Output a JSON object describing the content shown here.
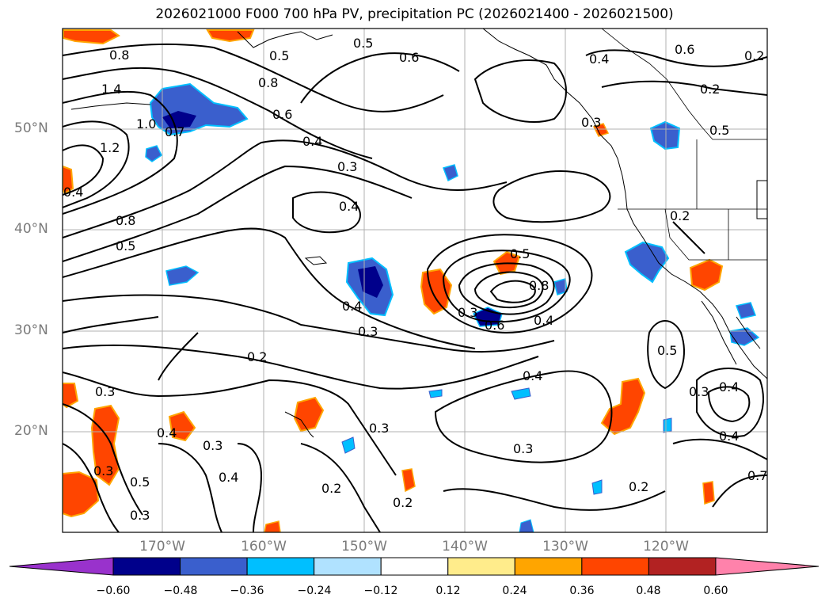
{
  "title": "2026021000 F000 700 hPa PV, precipitation PC (2026021400 - 2026021500)",
  "lat_labels": [
    "50°N",
    "40°N",
    "30°N",
    "20°N"
  ],
  "lon_labels": [
    "170°W",
    "160°W",
    "150°W",
    "140°W",
    "130°W",
    "120°W"
  ],
  "contour_labels": [
    "0.8",
    "1.4",
    "1.2",
    "1.0",
    "0.7",
    "0.5",
    "0.6",
    "0.8",
    "0.6",
    "0.4",
    "0.3",
    "0.4",
    "0.6",
    "0.4",
    "0.2",
    "0.2",
    "0.8",
    "0.5",
    "0.4",
    "0.3",
    "0.5",
    "0.8",
    "0.6",
    "0.4",
    "0.3",
    "0.2",
    "0.3",
    "0.4",
    "0.3",
    "0.4",
    "0.5",
    "0.3",
    "0.2",
    "0.3",
    "0.2",
    "0.3",
    "0.4",
    "0.5",
    "0.3",
    "0.4",
    "0.4",
    "0.7",
    "0.3",
    "0.5",
    "0.2",
    "0.2",
    "0.3",
    "0.4",
    "0.5"
  ],
  "colorbar": {
    "ticks": [
      "−0.60",
      "−0.48",
      "−0.36",
      "−0.24",
      "−0.12",
      "0.12",
      "0.24",
      "0.36",
      "0.48",
      "0.60"
    ],
    "colors": [
      "#9932cc",
      "#00008b",
      "#3a5fcd",
      "#00bfff",
      "#b0e2ff",
      "#ffffff",
      "#ffec8b",
      "#ffa500",
      "#ff4500",
      "#b22222",
      "#ff82ab"
    ]
  }
}
